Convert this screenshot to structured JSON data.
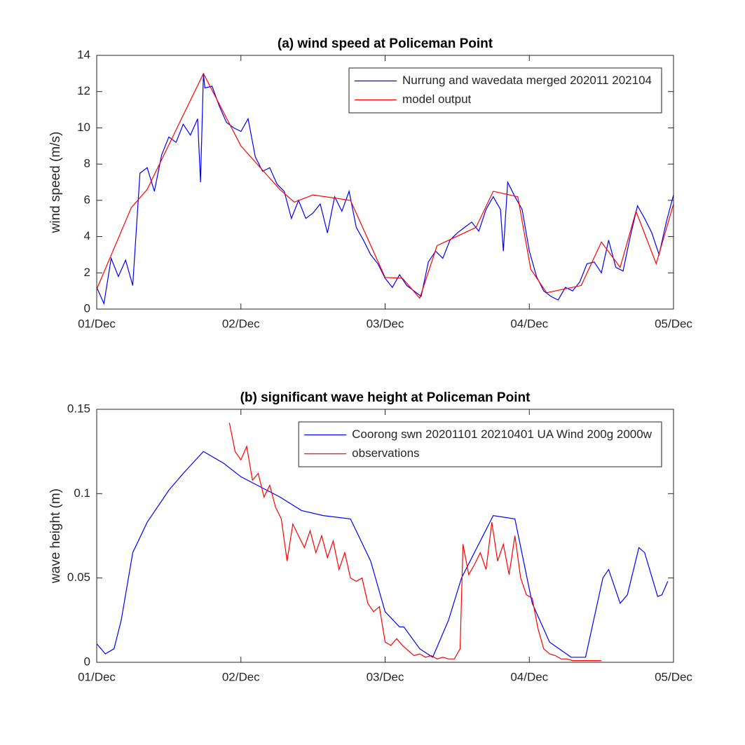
{
  "chart_data": [
    {
      "type": "line",
      "title": "(a) wind speed at Policeman Point",
      "ylabel": "wind speed (m/s)",
      "xlim": [
        0,
        4
      ],
      "xticks": [
        {
          "value": 0,
          "label": "01/Dec"
        },
        {
          "value": 1,
          "label": "02/Dec"
        },
        {
          "value": 2,
          "label": "03/Dec"
        },
        {
          "value": 3,
          "label": "04/Dec"
        },
        {
          "value": 4,
          "label": "05/Dec"
        }
      ],
      "ylim": [
        0,
        14
      ],
      "yticks": [
        0,
        2,
        4,
        6,
        8,
        10,
        12,
        14
      ],
      "legend": "upper right",
      "series": [
        {
          "name": "Nurrung and wavedata merged 202011 202104",
          "color": "#0000ff",
          "x": [
            0,
            0.05,
            0.1,
            0.15,
            0.2,
            0.25,
            0.3,
            0.35,
            0.4,
            0.45,
            0.5,
            0.55,
            0.6,
            0.65,
            0.7,
            0.72,
            0.74,
            0.75,
            0.8,
            0.85,
            0.9,
            0.95,
            1.0,
            1.05,
            1.1,
            1.15,
            1.2,
            1.25,
            1.3,
            1.35,
            1.4,
            1.45,
            1.5,
            1.55,
            1.6,
            1.65,
            1.7,
            1.75,
            1.8,
            1.85,
            1.9,
            1.95,
            2.0,
            2.05,
            2.1,
            2.15,
            2.2,
            2.25,
            2.3,
            2.35,
            2.4,
            2.45,
            2.5,
            2.55,
            2.6,
            2.65,
            2.7,
            2.75,
            2.8,
            2.82,
            2.85,
            2.9,
            2.95,
            3.0,
            3.05,
            3.1,
            3.15,
            3.2,
            3.25,
            3.3,
            3.35,
            3.4,
            3.45,
            3.5,
            3.55,
            3.6,
            3.65,
            3.7,
            3.75,
            3.8,
            3.85,
            3.9,
            3.95,
            4.0
          ],
          "values": [
            1.2,
            0.3,
            2.8,
            1.8,
            2.7,
            1.3,
            7.5,
            7.8,
            6.5,
            8.5,
            9.5,
            9.2,
            10.2,
            9.6,
            10.5,
            7.0,
            13.0,
            12.2,
            12.3,
            11.2,
            10.3,
            10.0,
            9.8,
            10.5,
            8.4,
            7.6,
            7.8,
            6.9,
            6.5,
            5.0,
            6.0,
            5.0,
            5.3,
            5.8,
            4.2,
            6.2,
            5.4,
            6.5,
            4.5,
            3.8,
            3.0,
            2.5,
            1.7,
            1.2,
            1.9,
            1.3,
            1.0,
            0.7,
            2.6,
            3.2,
            2.8,
            3.8,
            4.2,
            4.5,
            4.8,
            4.3,
            5.5,
            6.2,
            5.5,
            3.2,
            7.0,
            6.2,
            5.5,
            3.2,
            1.8,
            1.0,
            0.7,
            0.5,
            1.2,
            1.0,
            1.5,
            2.5,
            2.6,
            2.0,
            3.8,
            2.3,
            2.1,
            4.0,
            5.7,
            5.0,
            4.2,
            3.0,
            4.8,
            6.3
          ]
        },
        {
          "name": "model output",
          "color": "#ff0000",
          "x": [
            0,
            0.24,
            0.35,
            0.74,
            1.0,
            1.27,
            1.37,
            1.5,
            1.76,
            2.0,
            2.12,
            2.24,
            2.36,
            2.63,
            2.75,
            2.92,
            3.01,
            3.12,
            3.36,
            3.5,
            3.63,
            3.74,
            3.88,
            4.0
          ],
          "values": [
            1.1,
            5.6,
            6.6,
            13.0,
            9.0,
            6.6,
            5.9,
            6.3,
            6.0,
            1.75,
            1.7,
            0.6,
            3.5,
            4.5,
            6.5,
            6.2,
            2.2,
            0.9,
            1.3,
            3.7,
            2.3,
            5.4,
            2.5,
            5.8
          ]
        }
      ]
    },
    {
      "type": "line",
      "title": "(b) significant wave height at Policeman Point",
      "ylabel": "wave height (m)",
      "xlim": [
        0,
        4
      ],
      "xticks": [
        {
          "value": 0,
          "label": "01/Dec"
        },
        {
          "value": 1,
          "label": "02/Dec"
        },
        {
          "value": 2,
          "label": "03/Dec"
        },
        {
          "value": 3,
          "label": "04/Dec"
        },
        {
          "value": 4,
          "label": "05/Dec"
        }
      ],
      "ylim": [
        0,
        0.15
      ],
      "yticks": [
        0,
        0.05,
        0.1,
        0.15
      ],
      "legend": "upper right",
      "series": [
        {
          "name": "Coorong swn 20201101 20210401 UA Wind 200g 2000w",
          "color": "#0000ff",
          "x": [
            0,
            0.06,
            0.12,
            0.17,
            0.25,
            0.35,
            0.5,
            0.6,
            0.74,
            0.88,
            1.0,
            1.27,
            1.42,
            1.57,
            1.76,
            1.9,
            2.0,
            2.1,
            2.13,
            2.24,
            2.33,
            2.44,
            2.53,
            2.75,
            2.9,
            3.02,
            3.14,
            3.29,
            3.39,
            3.51,
            3.55,
            3.63,
            3.68,
            3.76,
            3.8,
            3.89,
            3.92,
            3.96
          ],
          "values": [
            0.011,
            0.005,
            0.008,
            0.025,
            0.065,
            0.083,
            0.102,
            0.112,
            0.125,
            0.118,
            0.11,
            0.098,
            0.09,
            0.087,
            0.085,
            0.06,
            0.03,
            0.021,
            0.021,
            0.008,
            0.003,
            0.025,
            0.05,
            0.087,
            0.085,
            0.035,
            0.012,
            0.003,
            0.003,
            0.05,
            0.055,
            0.035,
            0.04,
            0.068,
            0.065,
            0.039,
            0.04,
            0.048
          ]
        },
        {
          "name": "observations",
          "color": "#ff0000",
          "x": [
            0.92,
            0.96,
            1.0,
            1.04,
            1.08,
            1.12,
            1.16,
            1.2,
            1.24,
            1.28,
            1.32,
            1.36,
            1.4,
            1.44,
            1.48,
            1.52,
            1.56,
            1.6,
            1.64,
            1.68,
            1.72,
            1.76,
            1.8,
            1.84,
            1.88,
            1.92,
            1.96,
            2.0,
            2.04,
            2.08,
            2.12,
            2.16,
            2.2,
            2.24,
            2.28,
            2.32,
            2.36,
            2.4,
            2.44,
            2.48,
            2.52,
            2.54,
            2.58,
            2.62,
            2.66,
            2.7,
            2.74,
            2.78,
            2.82,
            2.86,
            2.9,
            2.94,
            2.98,
            3.02,
            3.06,
            3.1,
            3.14,
            3.18,
            3.22,
            3.26,
            3.3,
            3.34,
            3.38,
            3.42,
            3.46,
            3.5
          ],
          "values": [
            0.142,
            0.125,
            0.12,
            0.128,
            0.108,
            0.112,
            0.098,
            0.105,
            0.092,
            0.085,
            0.06,
            0.082,
            0.075,
            0.068,
            0.078,
            0.065,
            0.075,
            0.062,
            0.072,
            0.055,
            0.065,
            0.05,
            0.048,
            0.05,
            0.035,
            0.03,
            0.033,
            0.012,
            0.01,
            0.014,
            0.01,
            0.007,
            0.004,
            0.005,
            0.003,
            0.004,
            0.002,
            0.003,
            0.002,
            0.002,
            0.008,
            0.07,
            0.052,
            0.058,
            0.065,
            0.055,
            0.083,
            0.06,
            0.07,
            0.052,
            0.075,
            0.05,
            0.04,
            0.038,
            0.02,
            0.008,
            0.005,
            0.004,
            0.002,
            0.002,
            0.001,
            0.001,
            0.001,
            0.001,
            0.001,
            0.001
          ]
        }
      ]
    }
  ]
}
